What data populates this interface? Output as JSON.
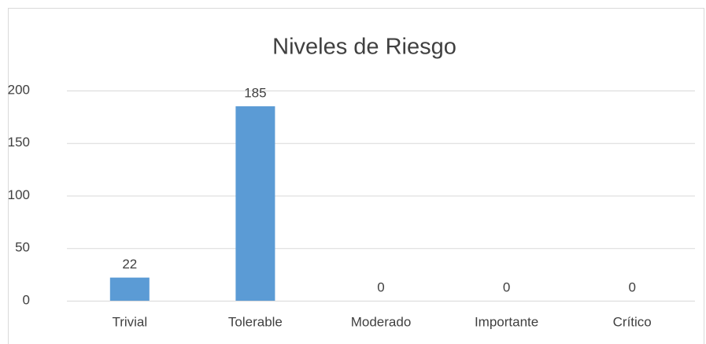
{
  "chart_data": {
    "type": "bar",
    "title": "Niveles de Riesgo",
    "categories": [
      "Trivial",
      "Tolerable",
      "Moderado",
      "Importante",
      "Crítico"
    ],
    "values": [
      22,
      185,
      0,
      0,
      0
    ],
    "color": "#5b9bd5",
    "ylim": [
      0,
      200
    ],
    "yticks": [
      0,
      50,
      100,
      150,
      200
    ],
    "grid": true,
    "data_labels": true
  }
}
